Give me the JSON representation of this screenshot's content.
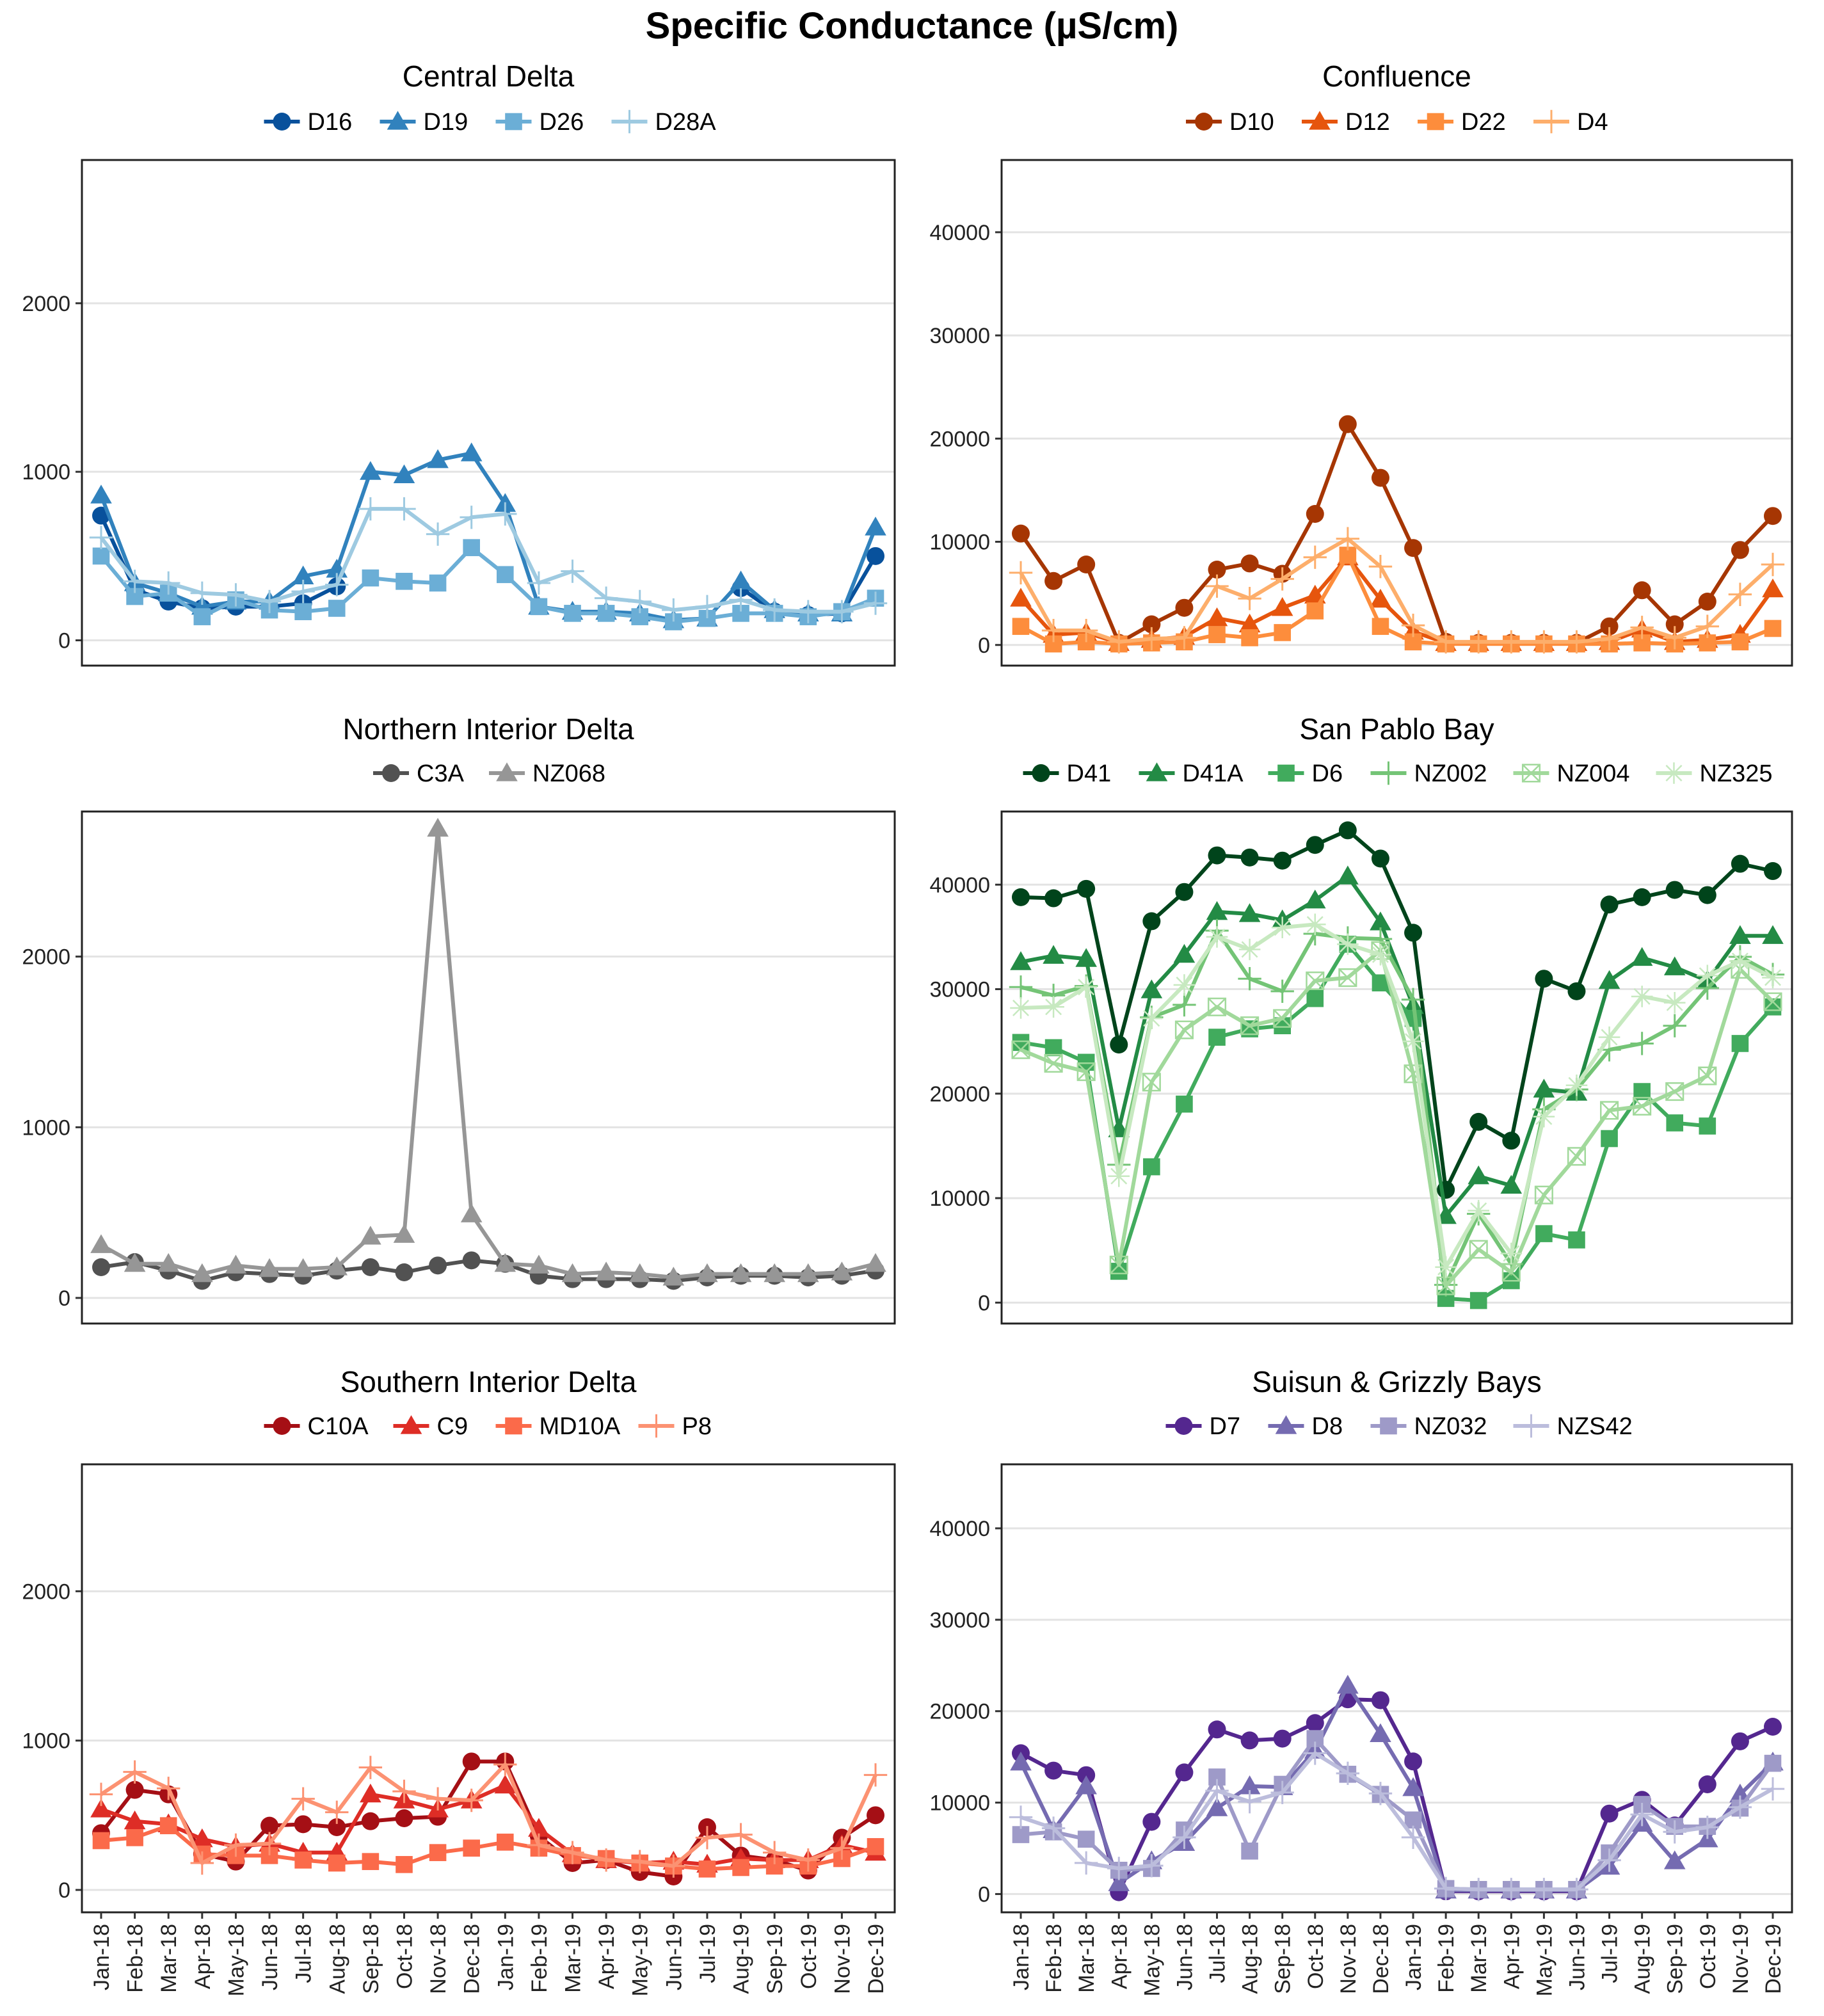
{
  "title": "Specific Conductance (µS/cm)",
  "months": [
    "Jan-18",
    "Feb-18",
    "Mar-18",
    "Apr-18",
    "May-18",
    "Jun-18",
    "Jul-18",
    "Aug-18",
    "Sep-18",
    "Oct-18",
    "Nov-18",
    "Dec-18",
    "Jan-19",
    "Feb-19",
    "Mar-19",
    "Apr-19",
    "May-19",
    "Jun-19",
    "Jul-19",
    "Aug-19",
    "Sep-19",
    "Oct-19",
    "Nov-19",
    "Dec-19"
  ],
  "chart_data": [
    {
      "type": "line",
      "title": "Central Delta",
      "ylim": [
        -150,
        2850
      ],
      "yticks": [
        0,
        1000,
        2000
      ],
      "series": [
        {
          "name": "D16",
          "marker": "circle",
          "color": "#08519c",
          "values": [
            740,
            300,
            230,
            190,
            200,
            200,
            220,
            320,
            null,
            null,
            null,
            null,
            null,
            null,
            null,
            null,
            null,
            null,
            null,
            310,
            170,
            150,
            160,
            500
          ]
        },
        {
          "name": "D19",
          "marker": "triangle",
          "color": "#3182bd",
          "values": [
            860,
            340,
            280,
            200,
            230,
            230,
            380,
            420,
            1000,
            980,
            1070,
            1110,
            810,
            200,
            170,
            170,
            160,
            120,
            130,
            350,
            180,
            160,
            160,
            670
          ]
        },
        {
          "name": "D26",
          "marker": "square",
          "color": "#6baed6",
          "values": [
            500,
            260,
            280,
            140,
            240,
            180,
            170,
            190,
            370,
            350,
            340,
            550,
            390,
            200,
            160,
            160,
            140,
            110,
            130,
            160,
            160,
            140,
            170,
            250
          ]
        },
        {
          "name": "D28A",
          "marker": "plus",
          "color": "#9ecae1",
          "values": [
            610,
            350,
            340,
            280,
            270,
            230,
            290,
            330,
            780,
            780,
            630,
            730,
            750,
            340,
            410,
            250,
            230,
            180,
            200,
            240,
            180,
            170,
            170,
            220
          ]
        }
      ]
    },
    {
      "type": "line",
      "title": "Confluence",
      "ylim": [
        -2000,
        47000
      ],
      "yticks": [
        0,
        10000,
        20000,
        30000,
        40000
      ],
      "series": [
        {
          "name": "D10",
          "marker": "circle",
          "color": "#a63603",
          "values": [
            10800,
            6200,
            7800,
            200,
            2000,
            3600,
            7300,
            7900,
            6900,
            12700,
            21400,
            16200,
            9400,
            300,
            200,
            200,
            200,
            200,
            1800,
            5300,
            2000,
            4200,
            9200,
            12500
          ]
        },
        {
          "name": "D12",
          "marker": "triangle",
          "color": "#e6550d",
          "values": [
            4500,
            1000,
            1200,
            200,
            500,
            800,
            2600,
            2000,
            3600,
            4800,
            8500,
            4400,
            1300,
            200,
            200,
            200,
            200,
            200,
            300,
            1500,
            300,
            500,
            1000,
            5400
          ]
        },
        {
          "name": "D22",
          "marker": "square",
          "color": "#fd8d3c",
          "values": [
            1800,
            100,
            300,
            100,
            200,
            300,
            1000,
            700,
            1200,
            3300,
            8700,
            1800,
            300,
            100,
            100,
            100,
            100,
            100,
            100,
            200,
            100,
            200,
            300,
            1600
          ]
        },
        {
          "name": "D4",
          "marker": "plus",
          "color": "#fdae6b",
          "values": [
            7000,
            1400,
            1400,
            300,
            600,
            700,
            5700,
            4500,
            6400,
            8500,
            10300,
            7600,
            1900,
            300,
            300,
            300,
            300,
            300,
            600,
            1700,
            700,
            1800,
            4900,
            7800
          ]
        }
      ]
    },
    {
      "type": "line",
      "title": "Northern Interior Delta",
      "ylim": [
        -150,
        2850
      ],
      "yticks": [
        0,
        1000,
        2000
      ],
      "series": [
        {
          "name": "C3A",
          "marker": "circle",
          "color": "#525252",
          "values": [
            180,
            210,
            160,
            100,
            150,
            140,
            130,
            160,
            180,
            150,
            190,
            220,
            200,
            130,
            110,
            110,
            110,
            100,
            120,
            130,
            130,
            120,
            130,
            160
          ]
        },
        {
          "name": "NZ068",
          "marker": "triangle",
          "color": "#969696",
          "values": [
            310,
            200,
            200,
            140,
            190,
            170,
            170,
            180,
            360,
            370,
            2750,
            490,
            200,
            190,
            140,
            150,
            140,
            120,
            140,
            140,
            140,
            140,
            150,
            200
          ]
        }
      ]
    },
    {
      "type": "line",
      "title": "San Pablo Bay",
      "ylim": [
        -2000,
        47000
      ],
      "yticks": [
        0,
        10000,
        20000,
        30000,
        40000
      ],
      "series": [
        {
          "name": "D41",
          "marker": "circle",
          "color": "#00441b",
          "values": [
            38800,
            38700,
            39600,
            24700,
            36500,
            39300,
            42800,
            42600,
            42300,
            43800,
            45200,
            42500,
            35400,
            10800,
            17300,
            15500,
            31000,
            29800,
            38100,
            38800,
            39500,
            39000,
            42000,
            41300
          ]
        },
        {
          "name": "D41A",
          "marker": "triangle",
          "color": "#238b45",
          "values": [
            32600,
            33200,
            32900,
            16600,
            29900,
            33300,
            37400,
            37200,
            36600,
            38500,
            40800,
            36400,
            28400,
            8300,
            12100,
            11200,
            20400,
            20100,
            30800,
            33000,
            32100,
            30800,
            35100,
            35100
          ]
        },
        {
          "name": "D6",
          "marker": "square",
          "color": "#41ab5d",
          "values": [
            24900,
            24400,
            23000,
            3000,
            13000,
            19000,
            25400,
            26200,
            26500,
            29100,
            34300,
            30600,
            27200,
            400,
            200,
            2100,
            6600,
            6000,
            15700,
            20200,
            17200,
            16900,
            24800,
            28300
          ]
        },
        {
          "name": "NZ002",
          "marker": "plus",
          "color": "#74c476",
          "values": [
            30200,
            29400,
            30300,
            13200,
            27300,
            28500,
            35600,
            31000,
            29800,
            35300,
            34900,
            34800,
            29000,
            1700,
            8500,
            3700,
            18500,
            20400,
            24200,
            24800,
            26500,
            30100,
            33100,
            31400
          ]
        },
        {
          "name": "NZ004",
          "marker": "boxx",
          "color": "#a1d99b",
          "values": [
            24200,
            22900,
            22100,
            3600,
            21100,
            26100,
            28300,
            26500,
            27200,
            30800,
            31100,
            33700,
            21900,
            1600,
            5100,
            2900,
            10300,
            14000,
            18400,
            18800,
            20200,
            21700,
            31900,
            28800
          ]
        },
        {
          "name": "NZ325",
          "marker": "asterisk",
          "color": "#c7e9c0",
          "values": [
            28200,
            28300,
            30200,
            12100,
            27200,
            30400,
            35000,
            33800,
            35900,
            36200,
            34300,
            33300,
            25000,
            3400,
            8800,
            4700,
            17800,
            20800,
            25400,
            29300,
            28700,
            31300,
            32700,
            31100
          ]
        }
      ]
    },
    {
      "type": "line",
      "title": "Southern Interior Delta",
      "ylim": [
        -150,
        2850
      ],
      "yticks": [
        0,
        1000,
        2000
      ],
      "series": [
        {
          "name": "C10A",
          "marker": "circle",
          "color": "#a50f15",
          "values": [
            380,
            670,
            640,
            240,
            190,
            430,
            440,
            420,
            460,
            480,
            490,
            860,
            860,
            360,
            180,
            200,
            120,
            90,
            420,
            230,
            200,
            130,
            350,
            500
          ]
        },
        {
          "name": "C9",
          "marker": "triangle",
          "color": "#de2d26",
          "values": [
            540,
            460,
            440,
            340,
            290,
            310,
            250,
            250,
            640,
            600,
            540,
            600,
            700,
            410,
            240,
            200,
            180,
            190,
            170,
            210,
            200,
            200,
            300,
            250
          ]
        },
        {
          "name": "MD10A",
          "marker": "square",
          "color": "#fb6a4a",
          "values": [
            330,
            350,
            430,
            240,
            230,
            230,
            200,
            180,
            190,
            170,
            250,
            280,
            320,
            280,
            230,
            210,
            180,
            160,
            140,
            150,
            160,
            160,
            210,
            290
          ]
        },
        {
          "name": "P8",
          "marker": "plus",
          "color": "#fc9272",
          "values": [
            640,
            790,
            680,
            180,
            300,
            310,
            610,
            520,
            820,
            660,
            610,
            600,
            840,
            300,
            250,
            200,
            190,
            160,
            350,
            370,
            250,
            200,
            280,
            770
          ]
        }
      ]
    },
    {
      "type": "line",
      "title": "Suisun & Grizzly Bays",
      "ylim": [
        -2000,
        47000
      ],
      "yticks": [
        0,
        10000,
        20000,
        30000,
        40000
      ],
      "series": [
        {
          "name": "D7",
          "marker": "circle",
          "color": "#54278f",
          "values": [
            15400,
            13500,
            13000,
            200,
            7900,
            13300,
            18000,
            16800,
            17000,
            18700,
            21300,
            21200,
            14500,
            300,
            300,
            300,
            300,
            300,
            8800,
            10300,
            7500,
            12000,
            16700,
            18300
          ]
        },
        {
          "name": "D8",
          "marker": "triangle",
          "color": "#756bb1",
          "values": [
            14400,
            7000,
            11800,
            1200,
            3600,
            5600,
            9400,
            11800,
            11700,
            15700,
            22800,
            17500,
            11600,
            400,
            400,
            400,
            400,
            400,
            3000,
            7700,
            3600,
            6000,
            10900,
            14400
          ]
        },
        {
          "name": "NZ032",
          "marker": "square",
          "color": "#9e9ac8",
          "values": [
            6500,
            6800,
            6000,
            2600,
            2800,
            7000,
            12800,
            4700,
            12000,
            17000,
            13100,
            10900,
            8100,
            600,
            500,
            500,
            500,
            500,
            4500,
            9800,
            7400,
            7400,
            9400,
            14300
          ]
        },
        {
          "name": "NZS42",
          "marker": "plus",
          "color": "#bcbddc",
          "values": [
            8400,
            7200,
            3400,
            2800,
            3100,
            6200,
            11300,
            10100,
            11100,
            15400,
            13200,
            11000,
            6200,
            600,
            500,
            500,
            500,
            500,
            3700,
            8700,
            6800,
            7300,
            9500,
            11500
          ]
        }
      ]
    }
  ]
}
